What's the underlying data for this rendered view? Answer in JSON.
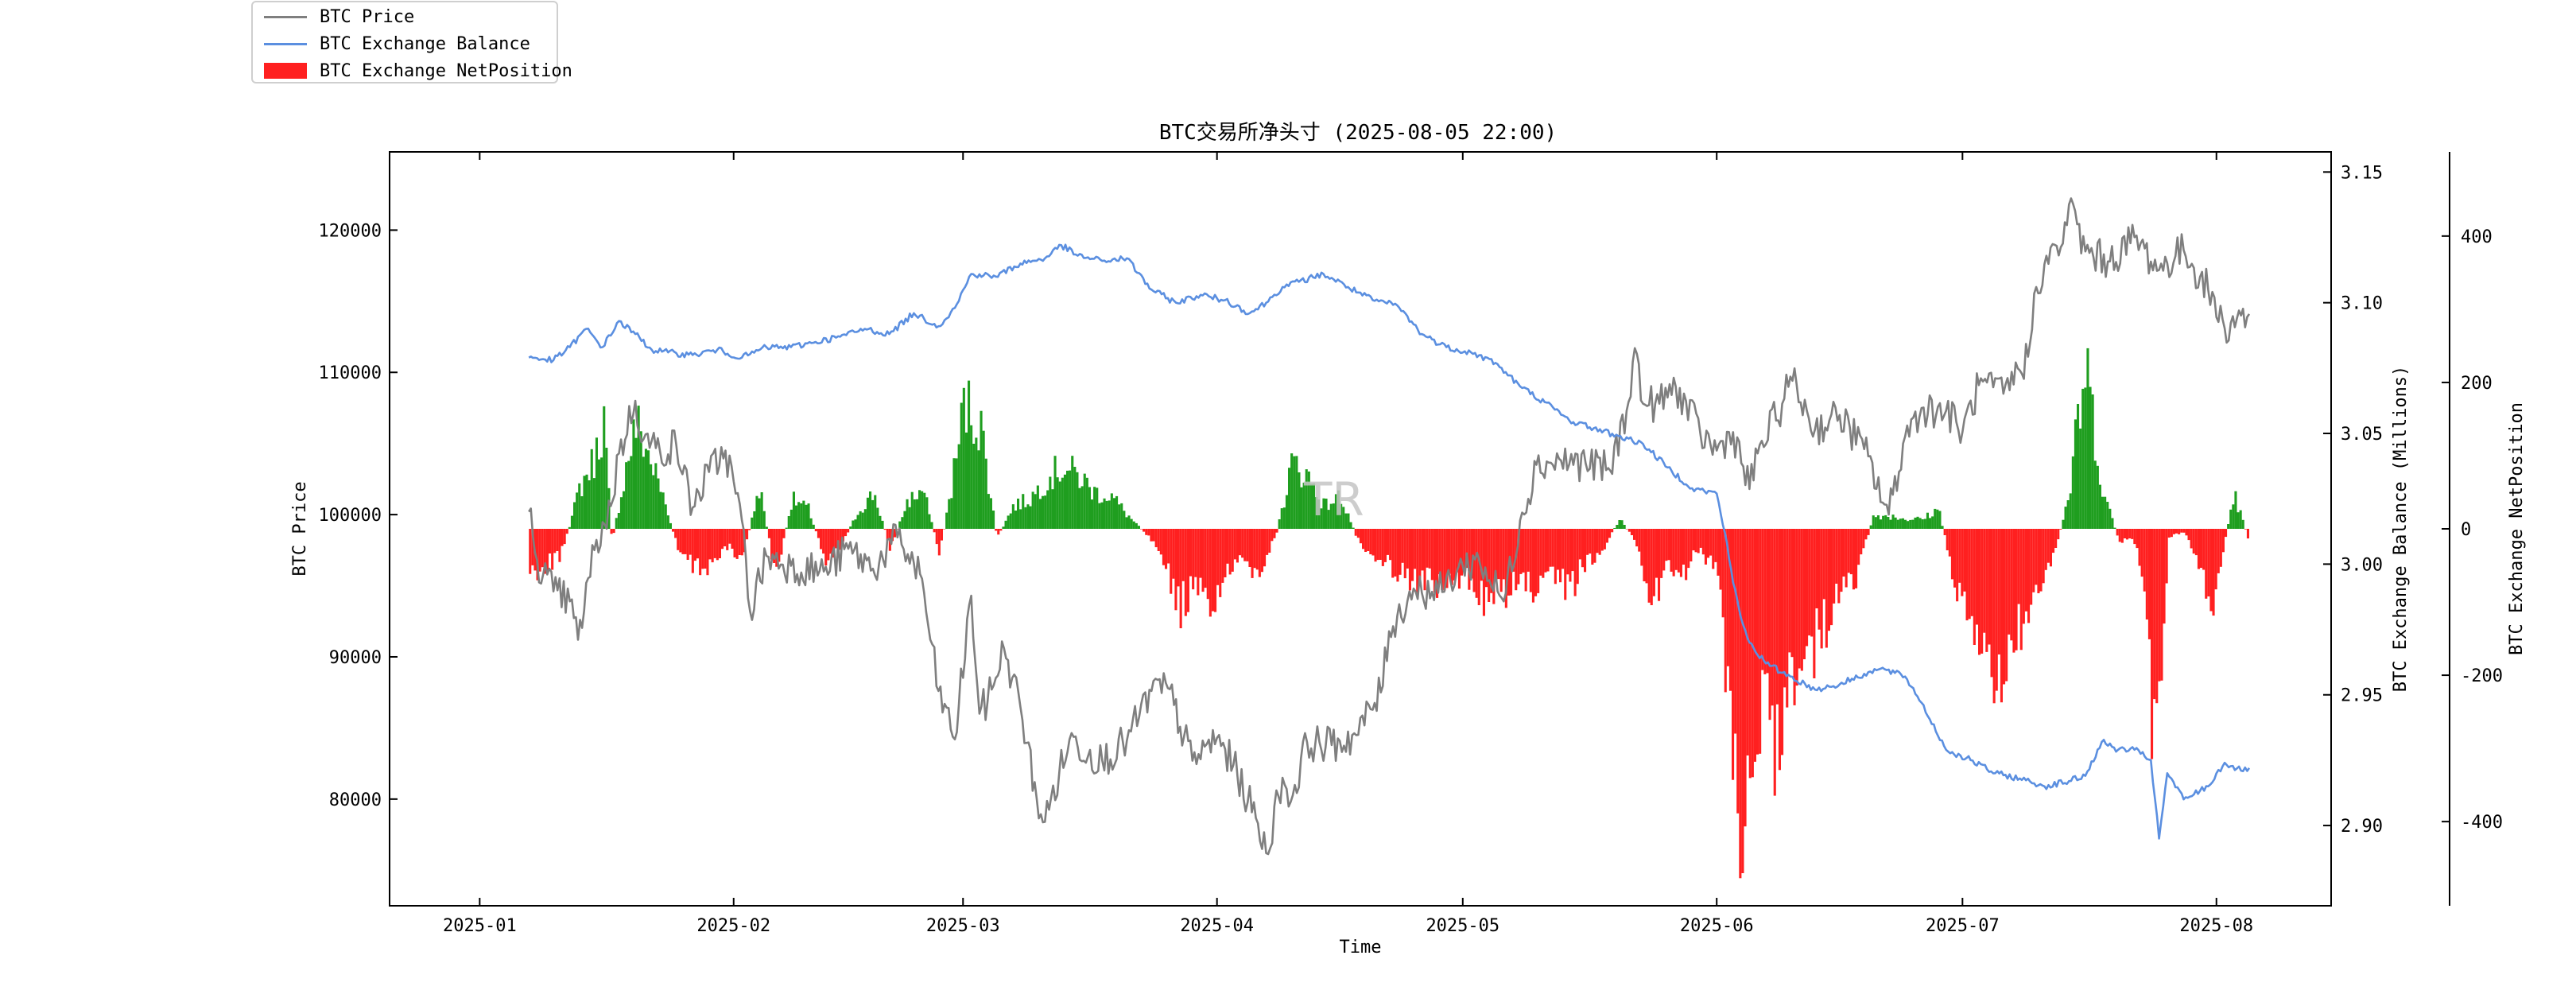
{
  "chart_data": {
    "type": "line",
    "title": "BTC交易所净头寸 (2025-08-05 22:00)",
    "xlabel": "Time",
    "x_ticks": [
      "2025-01",
      "2025-02",
      "2025-03",
      "2025-04",
      "2025-05",
      "2025-06",
      "2025-07",
      "2025-08"
    ],
    "x_tick_dates": [
      "2025-01-01",
      "2025-02-01",
      "2025-03-01",
      "2025-04-01",
      "2025-05-01",
      "2025-06-01",
      "2025-07-01",
      "2025-08-01"
    ],
    "xlim": [
      "2024-12-21",
      "2025-08-15"
    ],
    "left_axis": {
      "label": "BTC Price",
      "ylim": [
        72500,
        125500
      ],
      "ticks": [
        "80000",
        "90000",
        "100000",
        "110000",
        "120000"
      ]
    },
    "right_axis": {
      "label": "BTC Exchange Balance (Millions)",
      "ylim": [
        2.8693,
        3.1577
      ],
      "ticks": [
        "2.90",
        "2.95",
        "3.00",
        "3.05",
        "3.10",
        "3.15"
      ]
    },
    "far_right_axis": {
      "label": "BTC Exchange NetPosition",
      "ylim": [
        -515,
        515
      ],
      "ticks": [
        "-400",
        "-200",
        "0",
        "200",
        "400"
      ]
    },
    "watermark": "TR",
    "legend": {
      "placement": "top-left, outside",
      "entries": [
        {
          "label": "BTC Price",
          "kind": "line",
          "color": "#7f7f7f"
        },
        {
          "label": "BTC Exchange Balance",
          "kind": "line",
          "color": "#5b8fe0"
        },
        {
          "label": "BTC Exchange NetPosition",
          "kind": "bar",
          "color": "#ff2020"
        }
      ]
    },
    "colors": {
      "price": "#7f7f7f",
      "balance": "#5b8fe0",
      "net_positive": "#1f9e1f",
      "net_negative": "#ff2020"
    },
    "series": [
      {
        "name": "BTC Price",
        "axis": "left",
        "kind": "line",
        "x": [
          "2025-01-07",
          "2025-01-08",
          "2025-01-10",
          "2025-01-12",
          "2025-01-13",
          "2025-01-15",
          "2025-01-17",
          "2025-01-18",
          "2025-01-20",
          "2025-01-21",
          "2025-01-23",
          "2025-01-25",
          "2025-01-27",
          "2025-01-29",
          "2025-01-31",
          "2025-02-02",
          "2025-02-03",
          "2025-02-05",
          "2025-02-08",
          "2025-02-12",
          "2025-02-15",
          "2025-02-18",
          "2025-02-21",
          "2025-02-24",
          "2025-02-25",
          "2025-02-26",
          "2025-02-28",
          "2025-03-02",
          "2025-03-03",
          "2025-03-04",
          "2025-03-06",
          "2025-03-08",
          "2025-03-10",
          "2025-03-11",
          "2025-03-14",
          "2025-03-18",
          "2025-03-21",
          "2025-03-24",
          "2025-03-26",
          "2025-03-29",
          "2025-04-01",
          "2025-04-03",
          "2025-04-06",
          "2025-04-07",
          "2025-04-09",
          "2025-04-10",
          "2025-04-12",
          "2025-04-15",
          "2025-04-18",
          "2025-04-21",
          "2025-04-22",
          "2025-04-25",
          "2025-04-28",
          "2025-05-01",
          "2025-05-03",
          "2025-05-06",
          "2025-05-08",
          "2025-05-10",
          "2025-05-13",
          "2025-05-16",
          "2025-05-19",
          "2025-05-21",
          "2025-05-22",
          "2025-05-23",
          "2025-05-25",
          "2025-05-27",
          "2025-05-30",
          "2025-06-01",
          "2025-06-03",
          "2025-06-05",
          "2025-06-06",
          "2025-06-09",
          "2025-06-10",
          "2025-06-13",
          "2025-06-16",
          "2025-06-19",
          "2025-06-22",
          "2025-06-24",
          "2025-06-26",
          "2025-06-29",
          "2025-07-01",
          "2025-07-03",
          "2025-07-06",
          "2025-07-09",
          "2025-07-10",
          "2025-07-11",
          "2025-07-13",
          "2025-07-14",
          "2025-07-16",
          "2025-07-19",
          "2025-07-22",
          "2025-07-25",
          "2025-07-28",
          "2025-07-31",
          "2025-08-02",
          "2025-08-04",
          "2025-08-05"
        ],
        "y": [
          100200,
          96800,
          94600,
          93900,
          91200,
          97500,
          100600,
          104300,
          108000,
          105300,
          104500,
          104900,
          100500,
          103000,
          104500,
          99600,
          93200,
          97100,
          96400,
          96000,
          97600,
          96200,
          98400,
          95500,
          91200,
          87600,
          84200,
          94300,
          86000,
          86900,
          90600,
          86500,
          80000,
          78400,
          84200,
          82700,
          84100,
          87600,
          87800,
          82700,
          84300,
          82400,
          78300,
          76200,
          81500,
          79800,
          84000,
          83800,
          84500,
          87500,
          91800,
          94800,
          94500,
          96400,
          96800,
          93900,
          99600,
          103500,
          103800,
          103600,
          103100,
          107300,
          111700,
          107800,
          107800,
          109000,
          105700,
          104500,
          105800,
          101800,
          104300,
          107800,
          109700,
          106000,
          107000,
          104600,
          100000,
          105500,
          107500,
          107300,
          105800,
          109100,
          108500,
          111100,
          116000,
          117600,
          118800,
          121800,
          118500,
          117800,
          119500,
          117200,
          118600,
          115800,
          113100,
          114000,
          114100
        ]
      },
      {
        "name": "BTC Exchange Balance",
        "axis": "right",
        "kind": "line",
        "x": [
          "2025-01-07",
          "2025-01-10",
          "2025-01-12",
          "2025-01-14",
          "2025-01-16",
          "2025-01-18",
          "2025-01-20",
          "2025-01-22",
          "2025-01-24",
          "2025-01-27",
          "2025-01-30",
          "2025-02-02",
          "2025-02-05",
          "2025-02-08",
          "2025-02-11",
          "2025-02-14",
          "2025-02-17",
          "2025-02-20",
          "2025-02-23",
          "2025-02-26",
          "2025-02-28",
          "2025-03-02",
          "2025-03-05",
          "2025-03-08",
          "2025-03-11",
          "2025-03-13",
          "2025-03-15",
          "2025-03-18",
          "2025-03-21",
          "2025-03-24",
          "2025-03-27",
          "2025-03-30",
          "2025-04-02",
          "2025-04-05",
          "2025-04-07",
          "2025-04-09",
          "2025-04-11",
          "2025-04-14",
          "2025-04-17",
          "2025-04-20",
          "2025-04-23",
          "2025-04-26",
          "2025-04-29",
          "2025-05-02",
          "2025-05-05",
          "2025-05-08",
          "2025-05-11",
          "2025-05-14",
          "2025-05-17",
          "2025-05-20",
          "2025-05-23",
          "2025-05-26",
          "2025-05-29",
          "2025-06-01",
          "2025-06-02",
          "2025-06-03",
          "2025-06-04",
          "2025-06-05",
          "2025-06-07",
          "2025-06-10",
          "2025-06-13",
          "2025-06-16",
          "2025-06-19",
          "2025-06-21",
          "2025-06-24",
          "2025-06-26",
          "2025-06-29",
          "2025-07-02",
          "2025-07-05",
          "2025-07-08",
          "2025-07-11",
          "2025-07-14",
          "2025-07-16",
          "2025-07-18",
          "2025-07-20",
          "2025-07-22",
          "2025-07-24",
          "2025-07-25",
          "2025-07-26",
          "2025-07-28",
          "2025-07-31",
          "2025-08-02",
          "2025-08-04",
          "2025-08-05"
        ],
        "y": [
          3.079,
          3.078,
          3.083,
          3.09,
          3.083,
          3.093,
          3.088,
          3.082,
          3.081,
          3.08,
          3.082,
          3.079,
          3.083,
          3.083,
          3.085,
          3.087,
          3.09,
          3.088,
          3.096,
          3.091,
          3.098,
          3.111,
          3.11,
          3.115,
          3.117,
          3.122,
          3.118,
          3.116,
          3.117,
          3.105,
          3.1,
          3.103,
          3.101,
          3.096,
          3.1,
          3.106,
          3.108,
          3.111,
          3.106,
          3.101,
          3.099,
          3.088,
          3.083,
          3.081,
          3.077,
          3.068,
          3.062,
          3.055,
          3.052,
          3.049,
          3.046,
          3.037,
          3.029,
          3.027,
          3.012,
          2.993,
          2.979,
          2.97,
          2.962,
          2.957,
          2.952,
          2.954,
          2.958,
          2.96,
          2.957,
          2.947,
          2.929,
          2.925,
          2.92,
          2.918,
          2.915,
          2.917,
          2.919,
          2.932,
          2.929,
          2.929,
          2.925,
          2.895,
          2.92,
          2.91,
          2.915,
          2.924,
          2.921,
          2.922
        ]
      },
      {
        "name": "BTC Exchange NetPosition",
        "axis": "far_right",
        "kind": "bar",
        "x": [
          "2025-01-07",
          "2025-01-09",
          "2025-01-11",
          "2025-01-13",
          "2025-01-15",
          "2025-01-16",
          "2025-01-17",
          "2025-01-19",
          "2025-01-20",
          "2025-01-21",
          "2025-01-23",
          "2025-01-25",
          "2025-01-27",
          "2025-01-29",
          "2025-01-31",
          "2025-02-02",
          "2025-02-04",
          "2025-02-06",
          "2025-02-08",
          "2025-02-10",
          "2025-02-12",
          "2025-02-14",
          "2025-02-16",
          "2025-02-18",
          "2025-02-20",
          "2025-02-22",
          "2025-02-24",
          "2025-02-26",
          "2025-02-28",
          "2025-03-01",
          "2025-03-03",
          "2025-03-05",
          "2025-03-07",
          "2025-03-09",
          "2025-03-11",
          "2025-03-13",
          "2025-03-15",
          "2025-03-17",
          "2025-03-19",
          "2025-03-21",
          "2025-03-23",
          "2025-03-25",
          "2025-03-27",
          "2025-03-29",
          "2025-03-31",
          "2025-04-02",
          "2025-04-04",
          "2025-04-06",
          "2025-04-08",
          "2025-04-10",
          "2025-04-12",
          "2025-04-14",
          "2025-04-16",
          "2025-04-18",
          "2025-04-20",
          "2025-04-22",
          "2025-04-24",
          "2025-04-26",
          "2025-04-28",
          "2025-04-30",
          "2025-05-02",
          "2025-05-04",
          "2025-05-06",
          "2025-05-08",
          "2025-05-10",
          "2025-05-12",
          "2025-05-14",
          "2025-05-16",
          "2025-05-18",
          "2025-05-20",
          "2025-05-22",
          "2025-05-24",
          "2025-05-26",
          "2025-05-28",
          "2025-05-30",
          "2025-06-01",
          "2025-06-02",
          "2025-06-03",
          "2025-06-04",
          "2025-06-05",
          "2025-06-06",
          "2025-06-08",
          "2025-06-10",
          "2025-06-12",
          "2025-06-14",
          "2025-06-16",
          "2025-06-18",
          "2025-06-20",
          "2025-06-22",
          "2025-06-24",
          "2025-06-26",
          "2025-06-28",
          "2025-06-30",
          "2025-07-02",
          "2025-07-04",
          "2025-07-06",
          "2025-07-08",
          "2025-07-10",
          "2025-07-12",
          "2025-07-14",
          "2025-07-15",
          "2025-07-16",
          "2025-07-18",
          "2025-07-20",
          "2025-07-22",
          "2025-07-23",
          "2025-07-24",
          "2025-07-25",
          "2025-07-26",
          "2025-07-28",
          "2025-07-30",
          "2025-07-31",
          "2025-08-01",
          "2025-08-03",
          "2025-08-05"
        ],
        "y": [
          -65,
          -55,
          -35,
          60,
          110,
          170,
          -20,
          110,
          160,
          130,
          60,
          -30,
          -60,
          -55,
          -30,
          -45,
          65,
          -75,
          45,
          30,
          -45,
          -25,
          25,
          55,
          -30,
          40,
          60,
          -40,
          105,
          190,
          160,
          -15,
          35,
          45,
          75,
          95,
          80,
          55,
          50,
          20,
          -5,
          -30,
          -125,
          -95,
          -115,
          -70,
          -55,
          -60,
          -15,
          100,
          80,
          35,
          50,
          -15,
          -40,
          -55,
          -70,
          -80,
          -90,
          -85,
          -75,
          -115,
          -95,
          -85,
          -95,
          -80,
          -90,
          -50,
          -30,
          15,
          -20,
          -110,
          -55,
          -65,
          -30,
          -80,
          -230,
          -390,
          -420,
          -350,
          -300,
          -320,
          -220,
          -190,
          -150,
          -100,
          -70,
          20,
          20,
          15,
          15,
          30,
          -90,
          -120,
          -250,
          -200,
          -160,
          -115,
          -45,
          60,
          170,
          240,
          60,
          -20,
          -20,
          -80,
          -310,
          -280,
          -15,
          -5,
          -60,
          -130,
          -80,
          55,
          -25
        ]
      }
    ]
  }
}
